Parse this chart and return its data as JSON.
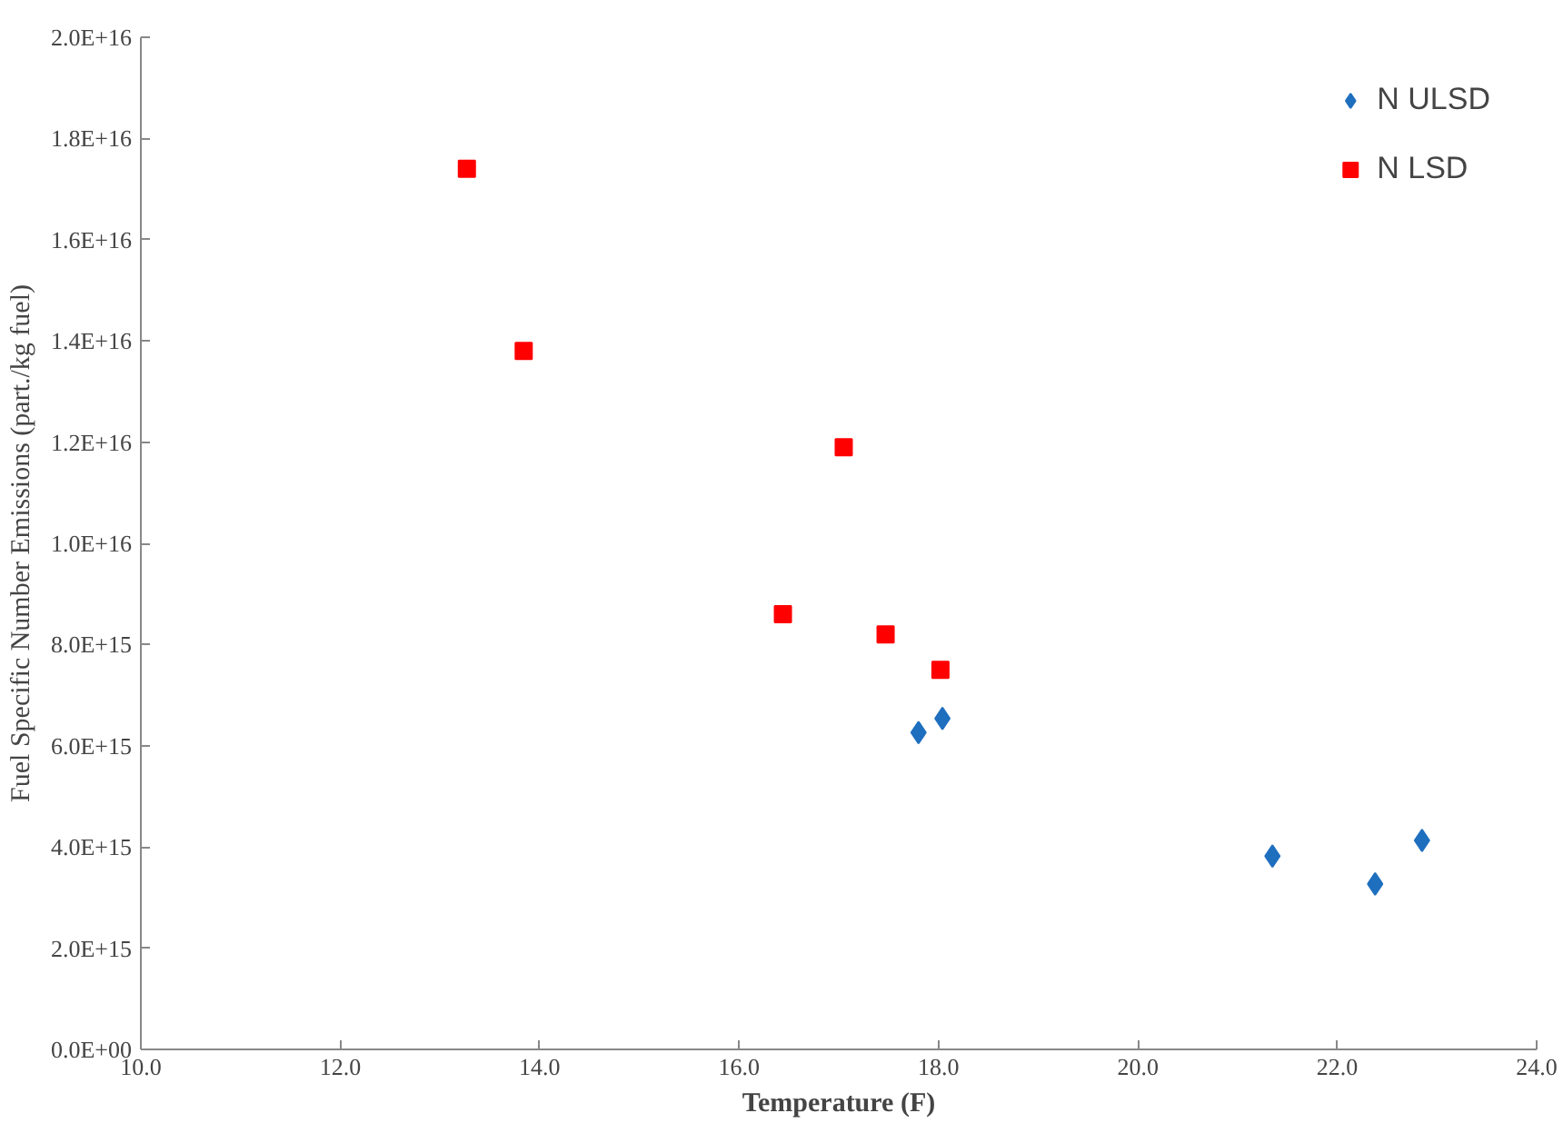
{
  "chart_data": {
    "type": "scatter",
    "xlabel": "Temperature (F)",
    "ylabel": "Fuel Specific Number Emissions (part./kg fuel)",
    "series": [
      {
        "name": "N ULSD",
        "color": "#1f6fbf",
        "marker": "diamond",
        "x": [
          17.8,
          18.04,
          21.35,
          22.38,
          22.85
        ],
        "values": [
          6260000000000000.0,
          6540000000000000.0,
          3820000000000000.0,
          3270000000000000.0,
          4130000000000000.0
        ]
      },
      {
        "name": "N LSD",
        "color": "#ff0000",
        "marker": "square",
        "x": [
          13.27,
          13.84,
          17.05,
          16.44,
          17.47,
          18.02
        ],
        "values": [
          1.74e+16,
          1.38e+16,
          1.19e+16,
          8600000000000000.0,
          8200000000000000.0,
          7500000000000000.0
        ]
      }
    ],
    "xlim": [
      10,
      24
    ],
    "xticks": [
      {
        "value": 10,
        "label": "10.0"
      },
      {
        "value": 12,
        "label": "12.0"
      },
      {
        "value": 14,
        "label": "14.0"
      },
      {
        "value": 16,
        "label": "16.0"
      },
      {
        "value": 18,
        "label": "18.0"
      },
      {
        "value": 20,
        "label": "20.0"
      },
      {
        "value": 22,
        "label": "22.0"
      },
      {
        "value": 24,
        "label": "24.0"
      }
    ],
    "ylim": [
      0,
      2e+16
    ],
    "yticks": [
      {
        "value": 0,
        "label": "0.0E+00"
      },
      {
        "value": 2000000000000000.0,
        "label": "2.0E+15"
      },
      {
        "value": 4000000000000000.0,
        "label": "4.0E+15"
      },
      {
        "value": 6000000000000000.0,
        "label": "6.0E+15"
      },
      {
        "value": 8000000000000000.0,
        "label": "8.0E+15"
      },
      {
        "value": 1e+16,
        "label": "1.0E+16"
      },
      {
        "value": 1.2e+16,
        "label": "1.2E+16"
      },
      {
        "value": 1.4e+16,
        "label": "1.4E+16"
      },
      {
        "value": 1.6e+16,
        "label": "1.6E+16"
      },
      {
        "value": 1.8e+16,
        "label": "1.8E+16"
      },
      {
        "value": 2e+16,
        "label": "2.0E+16"
      }
    ],
    "grid": false,
    "legend": "top right"
  }
}
